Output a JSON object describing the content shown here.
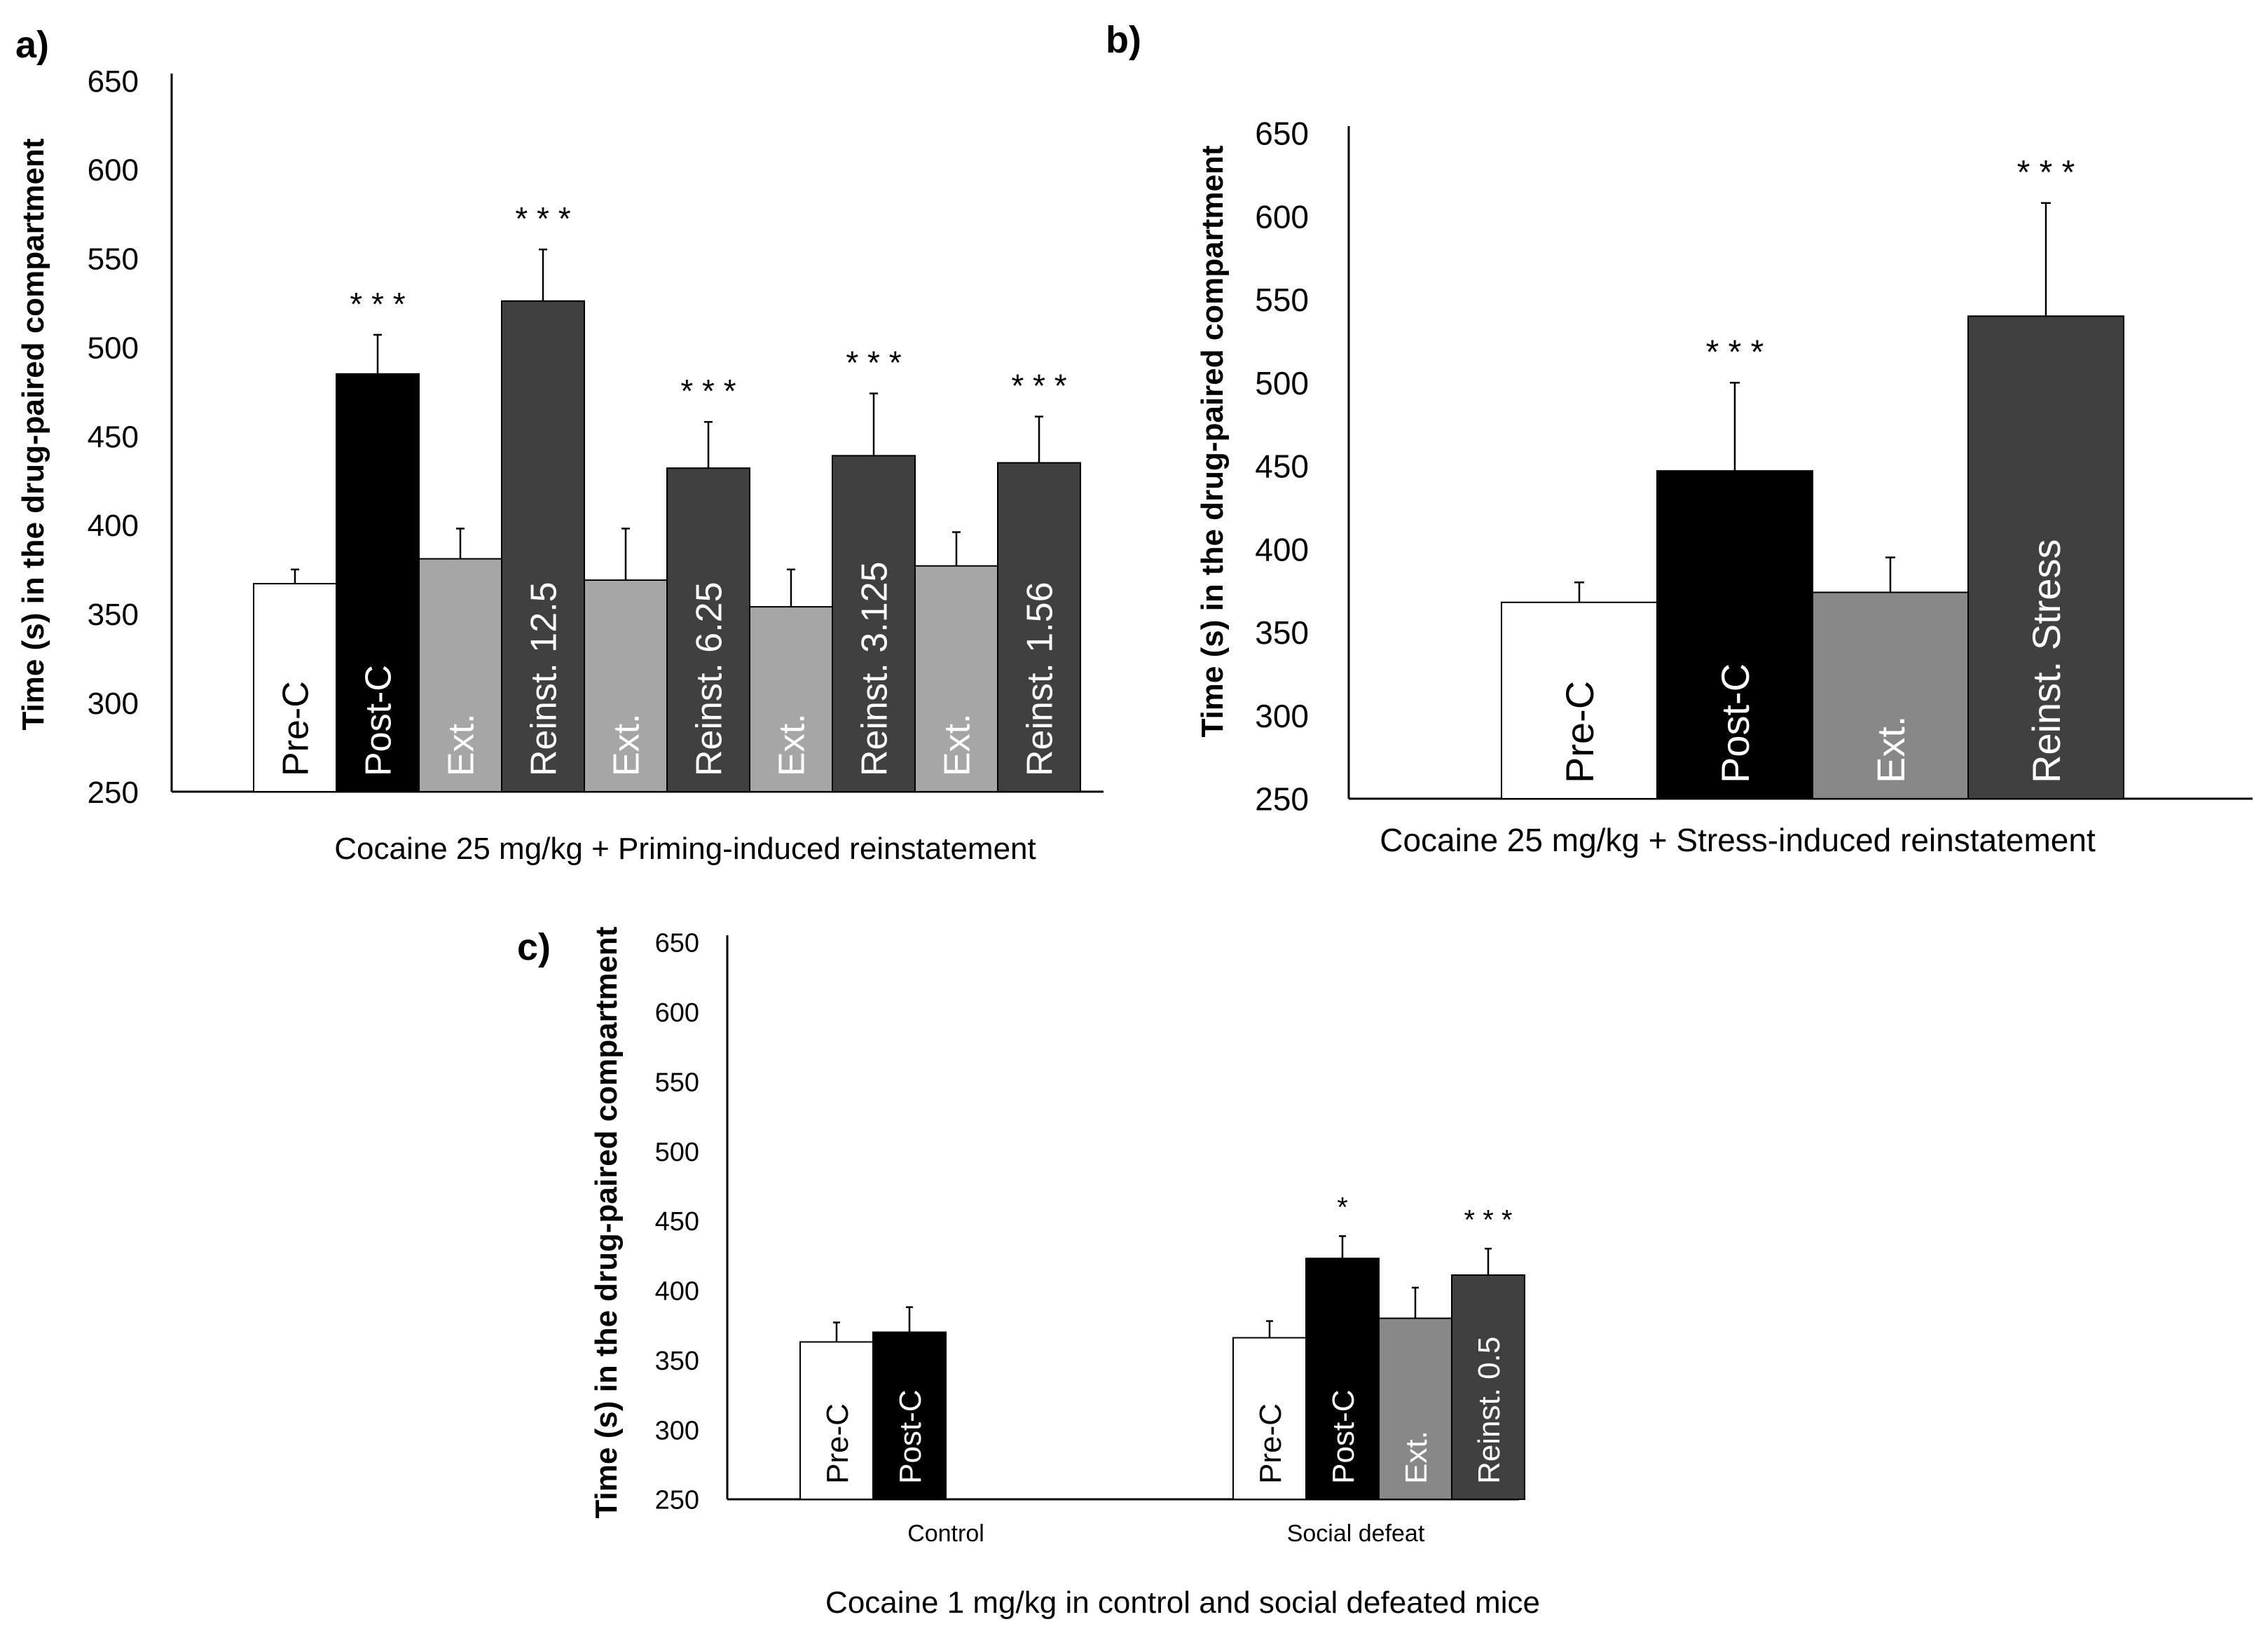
{
  "colors": {
    "white": "#ffffff",
    "black": "#000000",
    "light_gray": "#a6a6a6",
    "mid_gray": "#888888",
    "dark_gray": "#404040",
    "axis": "#000000"
  },
  "chart_data": [
    {
      "id": "a",
      "panel_label": "a)",
      "type": "bar",
      "title": "",
      "xlabel": "Cocaine 25 mg/kg + Priming-induced reinstatement",
      "ylabel": "Time (s) in the drug-paired compartment",
      "ylim": [
        250,
        650
      ],
      "yticks": [
        250,
        300,
        350,
        400,
        450,
        500,
        550,
        600,
        650
      ],
      "grid": false,
      "legend": "none",
      "categories": [
        "Pre-C",
        "Post-C",
        "Ext.",
        "Reinst. 12.5",
        "Ext.",
        "Reinst. 6.25",
        "Ext.",
        "Reinst. 3.125",
        "Ext.",
        "Reinst. 1.56"
      ],
      "values": [
        367,
        485,
        381,
        526,
        369,
        432,
        354,
        439,
        377,
        435
      ],
      "errors": [
        8,
        22,
        17,
        29,
        29,
        26,
        21,
        35,
        19,
        26
      ],
      "significance": [
        "",
        "***",
        "",
        "***",
        "",
        "***",
        "",
        "***",
        "",
        "***"
      ],
      "bar_colors": [
        "white",
        "black",
        "light_gray",
        "dark_gray",
        "light_gray",
        "dark_gray",
        "light_gray",
        "dark_gray",
        "light_gray",
        "dark_gray"
      ]
    },
    {
      "id": "b",
      "panel_label": "b)",
      "type": "bar",
      "title": "",
      "xlabel": "Cocaine 25 mg/kg + Stress-induced reinstatement",
      "ylabel": "Time (s) in the drug-paired compartment",
      "ylim": [
        250,
        650
      ],
      "yticks": [
        250,
        300,
        350,
        400,
        450,
        500,
        550,
        600,
        650
      ],
      "grid": false,
      "legend": "none",
      "categories": [
        "Pre-C",
        "Post-C",
        "Ext.",
        "Reinst. Stress"
      ],
      "values": [
        368,
        447,
        374,
        540
      ],
      "errors": [
        12,
        53,
        21,
        68
      ],
      "significance": [
        "",
        "***",
        "",
        "***"
      ],
      "bar_colors": [
        "white",
        "black",
        "mid_gray",
        "dark_gray"
      ]
    },
    {
      "id": "c",
      "panel_label": "c)",
      "type": "bar",
      "title": "",
      "xlabel": "Cocaine 1 mg/kg in control and social defeated mice",
      "ylabel": "Time (s) in the drug-paired compartment",
      "ylim": [
        250,
        650
      ],
      "yticks": [
        250,
        300,
        350,
        400,
        450,
        500,
        550,
        600,
        650
      ],
      "grid": false,
      "legend": "none",
      "groups": [
        "Control",
        "Social defeat"
      ],
      "series": [
        {
          "name": "Pre-C",
          "values": [
            363,
            366
          ],
          "errors": [
            14,
            12
          ],
          "significance": [
            "",
            ""
          ],
          "color": "white"
        },
        {
          "name": "Post-C",
          "values": [
            370,
            423
          ],
          "errors": [
            18,
            16
          ],
          "significance": [
            "",
            "*"
          ],
          "color": "black"
        },
        {
          "name": "Ext.",
          "values": [
            null,
            380
          ],
          "errors": [
            null,
            22
          ],
          "significance": [
            "",
            ""
          ],
          "color": "mid_gray"
        },
        {
          "name": "Reinst. 0.5",
          "values": [
            null,
            411
          ],
          "errors": [
            null,
            19
          ],
          "significance": [
            "",
            "***"
          ],
          "color": "dark_gray"
        }
      ]
    }
  ]
}
